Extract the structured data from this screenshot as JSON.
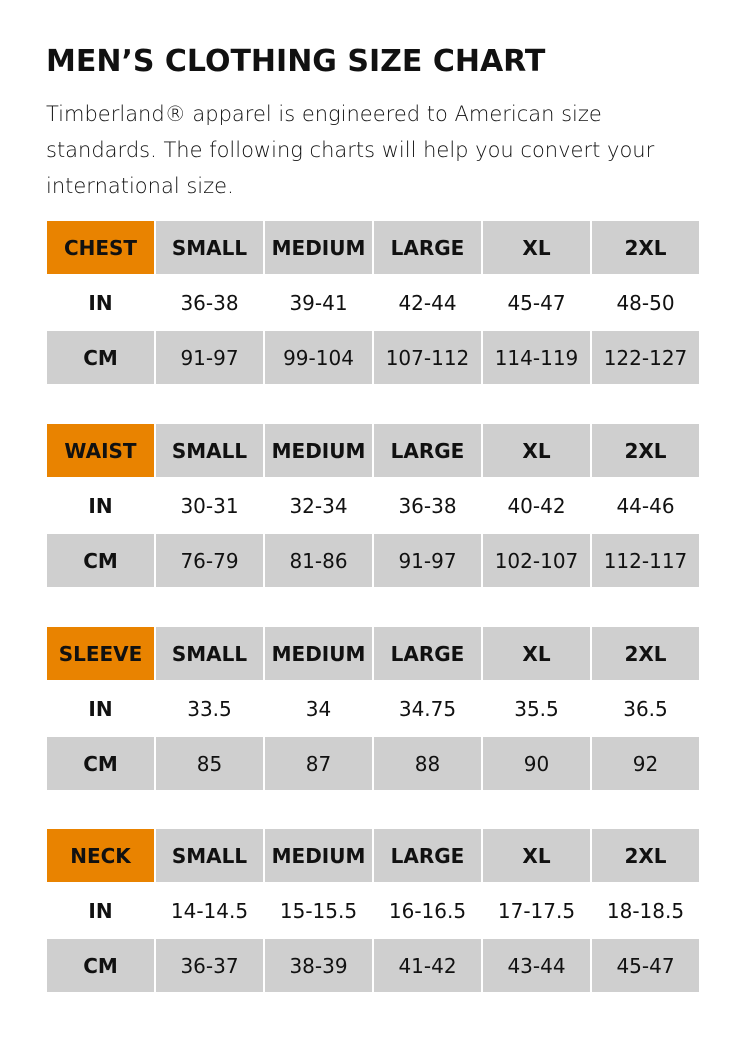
{
  "title": "MEN’S CLOTHING SIZE CHART",
  "intro": "Timberland® apparel is engineered to American size standards. The following charts will help you convert your international size.",
  "colors": {
    "accent": "#e98300",
    "gray": "#cfcfcf"
  },
  "sizes": [
    "SMALL",
    "MEDIUM",
    "LARGE",
    "XL",
    "2XL"
  ],
  "tables": [
    {
      "label": "CHEST",
      "rows": [
        {
          "unit": "IN",
          "values": [
            "36-38",
            "39-41",
            "42-44",
            "45-47",
            "48-50"
          ]
        },
        {
          "unit": "CM",
          "values": [
            "91-97",
            "99-104",
            "107-112",
            "114-119",
            "122-127"
          ]
        }
      ]
    },
    {
      "label": "WAIST",
      "rows": [
        {
          "unit": "IN",
          "values": [
            "30-31",
            "32-34",
            "36-38",
            "40-42",
            "44-46"
          ]
        },
        {
          "unit": "CM",
          "values": [
            "76-79",
            "81-86",
            "91-97",
            "102-107",
            "112-117"
          ]
        }
      ]
    },
    {
      "label": "SLEEVE",
      "rows": [
        {
          "unit": "IN",
          "values": [
            "33.5",
            "34",
            "34.75",
            "35.5",
            "36.5"
          ]
        },
        {
          "unit": "CM",
          "values": [
            "85",
            "87",
            "88",
            "90",
            "92"
          ]
        }
      ]
    },
    {
      "label": "NECK",
      "rows": [
        {
          "unit": "IN",
          "values": [
            "14-14.5",
            "15-15.5",
            "16-16.5",
            "17-17.5",
            "18-18.5"
          ]
        },
        {
          "unit": "CM",
          "values": [
            "36-37",
            "38-39",
            "41-42",
            "43-44",
            "45-47"
          ]
        }
      ]
    }
  ]
}
